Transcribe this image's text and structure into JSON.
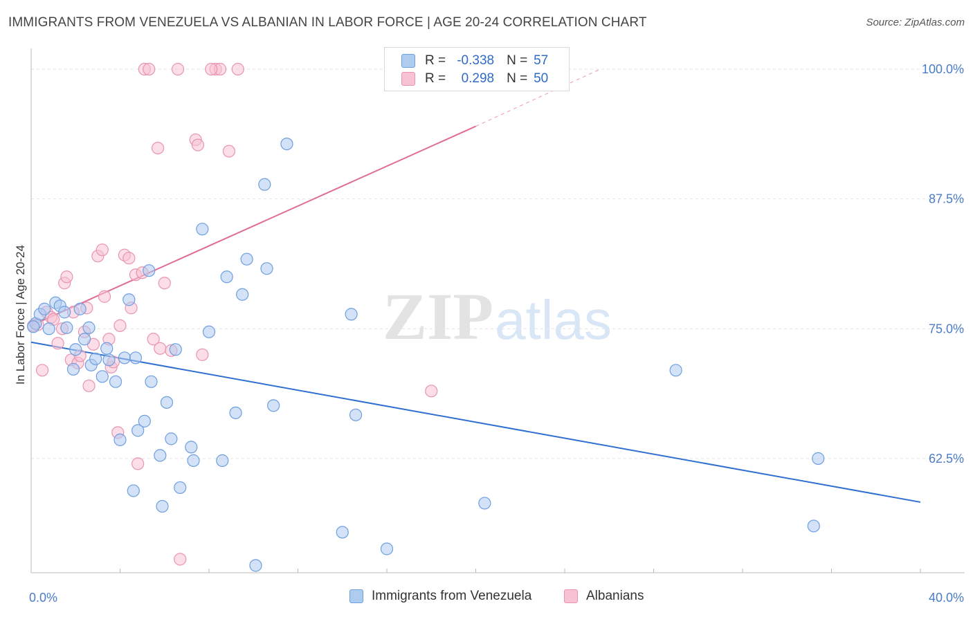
{
  "header": {
    "title": "IMMIGRANTS FROM VENEZUELA VS ALBANIAN IN LABOR FORCE | AGE 20-24 CORRELATION CHART",
    "source": "Source: ZipAtlas.com"
  },
  "watermark": {
    "zip": "ZIP",
    "atlas": "atlas"
  },
  "legend": {
    "rows": [
      {
        "r_label": "R =",
        "r_value": "-0.338",
        "n_label": "N =",
        "n_value": "57"
      },
      {
        "r_label": "R =",
        "r_value": "0.298",
        "n_label": "N =",
        "n_value": "50"
      }
    ]
  },
  "bottom_legend": {
    "items": [
      "Immigrants from Venezuela",
      "Albanians"
    ]
  },
  "colors": {
    "blue_fill": "#aecbf0",
    "blue_stroke": "#6d9ee0",
    "blue_line": "#2f6fd0",
    "pink_fill": "#f7c3d4",
    "pink_stroke": "#e894b0",
    "pink_line": "#e06c98",
    "grid": "#e2e2e2",
    "tick_text": "#4a7cc7"
  },
  "chart_data": {
    "type": "scatter",
    "title": "IMMIGRANTS FROM VENEZUELA VS ALBANIAN IN LABOR FORCE | AGE 20-24 CORRELATION CHART",
    "ylabel": "In Labor Force | Age 20-24",
    "xlabel": "",
    "xlim": [
      0,
      40
    ],
    "ylim": [
      51.5,
      102
    ],
    "x_tick_labels": [
      {
        "value": 0,
        "label": "0.0%"
      },
      {
        "value": 40,
        "label": "40.0%"
      }
    ],
    "y_tick_labels": [
      {
        "value": 100,
        "label": "100.0%"
      },
      {
        "value": 87.5,
        "label": "87.5%"
      },
      {
        "value": 75,
        "label": "75.0%"
      },
      {
        "value": 62.5,
        "label": "62.5%"
      }
    ],
    "grid": true,
    "legend_position": "top-center",
    "series": [
      {
        "name": "Immigrants from Venezuela",
        "r": -0.338,
        "n": 57,
        "trend": {
          "x0": 0,
          "y0": 73.7,
          "x1": 40,
          "y1": 58.3
        },
        "points": [
          [
            0.2,
            75.5
          ],
          [
            0.4,
            76.4
          ],
          [
            0.6,
            76.9
          ],
          [
            0.8,
            75.0
          ],
          [
            1.1,
            77.5
          ],
          [
            1.3,
            77.2
          ],
          [
            1.5,
            76.6
          ],
          [
            1.6,
            75.1
          ],
          [
            1.9,
            71.1
          ],
          [
            2.0,
            73.0
          ],
          [
            2.2,
            76.9
          ],
          [
            2.4,
            74.0
          ],
          [
            2.6,
            75.1
          ],
          [
            2.7,
            71.5
          ],
          [
            2.9,
            72.1
          ],
          [
            3.2,
            70.4
          ],
          [
            3.4,
            73.1
          ],
          [
            3.5,
            72.0
          ],
          [
            3.8,
            69.9
          ],
          [
            4.2,
            72.2
          ],
          [
            4.4,
            77.8
          ],
          [
            4.7,
            72.2
          ],
          [
            4.0,
            64.3
          ],
          [
            4.8,
            65.2
          ],
          [
            5.1,
            66.1
          ],
          [
            5.3,
            80.6
          ],
          [
            5.4,
            69.9
          ],
          [
            4.6,
            59.4
          ],
          [
            5.8,
            62.8
          ],
          [
            5.9,
            57.9
          ],
          [
            6.1,
            67.9
          ],
          [
            6.3,
            64.4
          ],
          [
            6.5,
            73.0
          ],
          [
            6.7,
            59.7
          ],
          [
            7.2,
            63.6
          ],
          [
            7.3,
            62.3
          ],
          [
            7.7,
            84.6
          ],
          [
            8.0,
            74.7
          ],
          [
            8.6,
            62.3
          ],
          [
            8.8,
            80.0
          ],
          [
            9.2,
            66.9
          ],
          [
            9.5,
            78.3
          ],
          [
            9.7,
            81.7
          ],
          [
            10.1,
            52.2
          ],
          [
            10.5,
            88.9
          ],
          [
            10.6,
            80.8
          ],
          [
            10.9,
            67.6
          ],
          [
            11.5,
            92.8
          ],
          [
            14.0,
            55.4
          ],
          [
            14.4,
            76.4
          ],
          [
            14.6,
            66.7
          ],
          [
            16.0,
            53.8
          ],
          [
            20.4,
            58.2
          ],
          [
            29.0,
            71.0
          ],
          [
            35.4,
            62.5
          ],
          [
            35.2,
            56.0
          ],
          [
            0.1,
            75.2
          ]
        ]
      },
      {
        "name": "Albanians",
        "r": 0.298,
        "n": 50,
        "trend": {
          "x0": 0,
          "y0": 75.3,
          "x1": 20,
          "y1": 94.5
        },
        "trend_extension": {
          "x0": 20,
          "y0": 94.5,
          "x1": 25.6,
          "y1": 100.0
        },
        "points": [
          [
            0.1,
            75.3
          ],
          [
            0.3,
            75.4
          ],
          [
            0.5,
            71.0
          ],
          [
            0.7,
            76.6
          ],
          [
            0.9,
            76.1
          ],
          [
            1.0,
            75.9
          ],
          [
            1.2,
            73.6
          ],
          [
            1.4,
            75.0
          ],
          [
            1.5,
            79.4
          ],
          [
            1.6,
            80.0
          ],
          [
            1.8,
            72.0
          ],
          [
            1.9,
            76.6
          ],
          [
            2.1,
            71.7
          ],
          [
            2.2,
            72.4
          ],
          [
            2.4,
            74.7
          ],
          [
            2.5,
            77.0
          ],
          [
            2.6,
            69.5
          ],
          [
            2.8,
            73.5
          ],
          [
            3.0,
            82.0
          ],
          [
            3.2,
            82.6
          ],
          [
            3.3,
            78.1
          ],
          [
            3.5,
            74.0
          ],
          [
            3.6,
            71.3
          ],
          [
            3.7,
            71.8
          ],
          [
            3.9,
            65.0
          ],
          [
            4.0,
            75.3
          ],
          [
            4.2,
            82.1
          ],
          [
            4.4,
            81.8
          ],
          [
            4.5,
            77.0
          ],
          [
            4.7,
            80.2
          ],
          [
            4.8,
            62.0
          ],
          [
            5.0,
            80.4
          ],
          [
            5.1,
            100.0
          ],
          [
            5.3,
            100.0
          ],
          [
            5.5,
            74.0
          ],
          [
            5.7,
            92.4
          ],
          [
            5.8,
            73.1
          ],
          [
            6.0,
            79.4
          ],
          [
            6.3,
            72.9
          ],
          [
            6.6,
            100.0
          ],
          [
            6.7,
            52.8
          ],
          [
            7.4,
            93.2
          ],
          [
            7.5,
            92.7
          ],
          [
            7.7,
            72.5
          ],
          [
            8.3,
            100.0
          ],
          [
            8.5,
            100.0
          ],
          [
            8.9,
            92.1
          ],
          [
            9.3,
            100.0
          ],
          [
            18.0,
            69.0
          ],
          [
            8.1,
            100.0
          ]
        ]
      }
    ]
  }
}
